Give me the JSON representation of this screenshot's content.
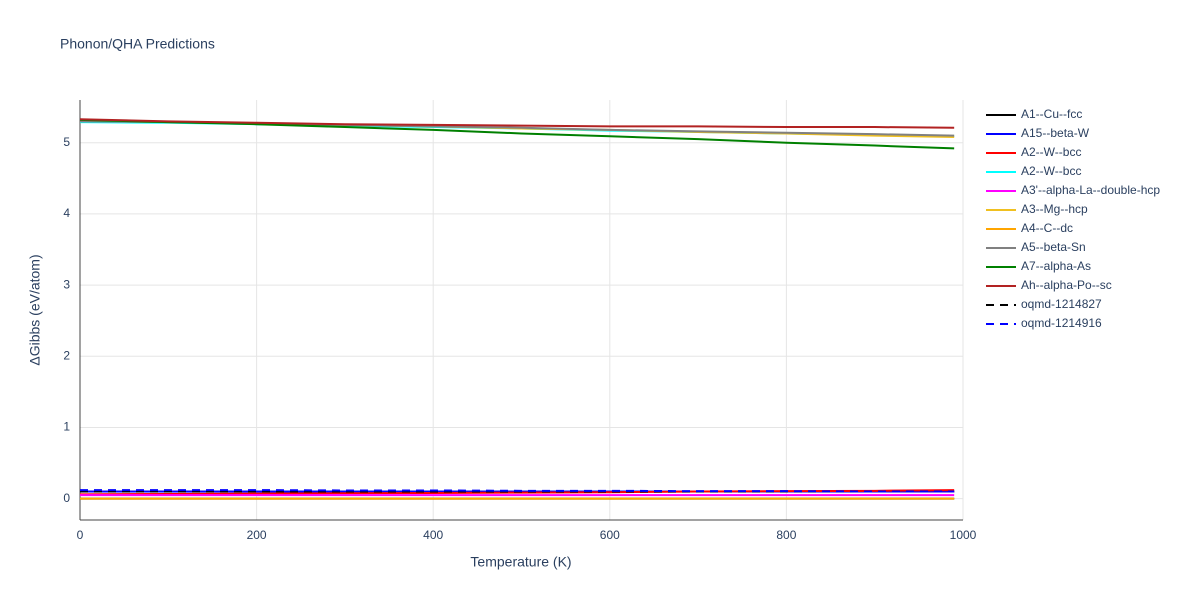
{
  "chart_data": {
    "type": "line",
    "title": "Phonon/QHA Predictions",
    "x_label": "Temperature (K)",
    "y_label": "ΔGibbs (eV/atom)",
    "x": [
      0,
      100,
      200,
      300,
      400,
      500,
      600,
      700,
      800,
      900,
      990
    ],
    "xlim": [
      0,
      1000
    ],
    "xticks": [
      0,
      200,
      400,
      600,
      800,
      1000
    ],
    "ylim": [
      -0.3,
      5.6
    ],
    "yticks": [
      0,
      1,
      2,
      3,
      4,
      5
    ],
    "grid": true,
    "series": [
      {
        "name": "A1--Cu--fcc",
        "color": "#000000",
        "dash": false,
        "values": [
          0.0,
          0.0,
          0.0,
          0.0,
          0.0,
          0.0,
          0.0,
          0.0,
          0.0,
          0.0,
          0.0
        ]
      },
      {
        "name": "A15--beta-W",
        "color": "#0000ff",
        "dash": false,
        "values": [
          0.1,
          0.1,
          0.1,
          0.1,
          0.1,
          0.1,
          0.1,
          0.1,
          0.1,
          0.1,
          0.1
        ]
      },
      {
        "name": "A2--W--bcc",
        "color": "#ff0000",
        "dash": false,
        "values": [
          0.06,
          0.065,
          0.07,
          0.075,
          0.08,
          0.085,
          0.09,
          0.1,
          0.105,
          0.11,
          0.12
        ]
      },
      {
        "name": "A2--W--bcc",
        "color": "#00ffff",
        "dash": false,
        "values": [
          5.29,
          5.28,
          5.26,
          5.24,
          5.22,
          5.2,
          5.17,
          5.15,
          5.13,
          5.11,
          5.09
        ]
      },
      {
        "name": "A3'--alpha-La--double-hcp",
        "color": "#ff00ff",
        "dash": false,
        "values": [
          0.05,
          0.05,
          0.05,
          0.05,
          0.05,
          0.05,
          0.05,
          0.05,
          0.05,
          0.05,
          0.05
        ]
      },
      {
        "name": "A3--Mg--hcp",
        "color": "#f0c020",
        "dash": false,
        "values": [
          5.31,
          5.29,
          5.27,
          5.25,
          5.23,
          5.2,
          5.18,
          5.15,
          5.13,
          5.1,
          5.08
        ]
      },
      {
        "name": "A4--C--dc",
        "color": "#ffa500",
        "dash": false,
        "values": [
          0.0,
          0.0,
          0.0,
          0.0,
          0.0,
          0.0,
          0.0,
          0.0,
          0.0,
          0.0,
          0.0
        ]
      },
      {
        "name": "A5--beta-Sn",
        "color": "#808080",
        "dash": false,
        "values": [
          5.3,
          5.29,
          5.27,
          5.25,
          5.23,
          5.21,
          5.18,
          5.16,
          5.14,
          5.12,
          5.1
        ]
      },
      {
        "name": "A7--alpha-As",
        "color": "#008000",
        "dash": false,
        "values": [
          5.32,
          5.29,
          5.26,
          5.22,
          5.18,
          5.13,
          5.09,
          5.05,
          5.0,
          4.96,
          4.92
        ]
      },
      {
        "name": "Ah--alpha-Po--sc",
        "color": "#b22222",
        "dash": false,
        "values": [
          5.33,
          5.3,
          5.28,
          5.26,
          5.25,
          5.24,
          5.23,
          5.23,
          5.22,
          5.22,
          5.21
        ]
      },
      {
        "name": "oqmd-1214827",
        "color": "#000000",
        "dash": true,
        "values": [
          0.1,
          0.1,
          0.1,
          0.1,
          0.1,
          0.1,
          0.1,
          0.1,
          0.1,
          0.1,
          0.1
        ]
      },
      {
        "name": "oqmd-1214916",
        "color": "#0000ff",
        "dash": true,
        "values": [
          0.12,
          0.12,
          0.12,
          0.115,
          0.115,
          0.11,
          0.11,
          0.105,
          0.105,
          0.1,
          0.1
        ]
      }
    ]
  }
}
